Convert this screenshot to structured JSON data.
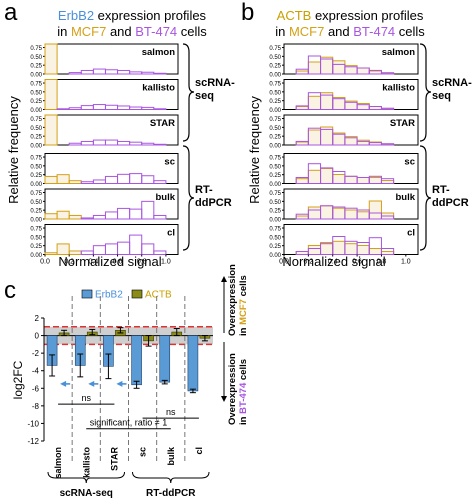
{
  "colors": {
    "erbb2": "#4a90d9",
    "actb": "#c8a000",
    "mcf7": "#d4a017",
    "bt474": "#a855e0",
    "bar_erbb2": "#5b9bd5",
    "bar_actb": "#8b8b1a",
    "red_dash": "#e03030",
    "band": "#cfcfcf"
  },
  "panel_a": {
    "letter": "a",
    "title_gene": "ErbB2",
    "title_rest1": " expression profiles",
    "title_in": "in ",
    "title_mcf7": "MCF7",
    "title_and": " and ",
    "title_bt474": "BT-474",
    "title_cells": " cells"
  },
  "panel_b": {
    "letter": "b",
    "title_gene": "ACTB",
    "title_rest1": " expression profiles",
    "title_in": "in ",
    "title_mcf7": "MCF7",
    "title_and": " and ",
    "title_bt474": "BT-474",
    "title_cells": " cells"
  },
  "panel_c": {
    "letter": "c"
  },
  "axis_text": {
    "ylabel": "Relative frequency",
    "xlabel": "Normalized signal",
    "scrna_1": "scRNA-",
    "scrna_2": "seq",
    "rt_1": "RT-",
    "rt_2": "ddPCR",
    "x_ticks": [
      "0.0",
      "0.2",
      "0.4",
      "0.6",
      "0.8",
      "1.0"
    ],
    "y_ticks": [
      "0.75",
      "0.50",
      "0.25",
      "0.00"
    ]
  },
  "chart_data": [
    {
      "type": "bar",
      "title": "ErbB2 expression profiles in MCF7 and BT-474 cells",
      "xlabel": "Normalized signal",
      "ylabel": "Relative frequency",
      "xlim": [
        0,
        1.1
      ],
      "ylim": [
        0,
        0.85
      ],
      "bin_edges": [
        0.0,
        0.1,
        0.2,
        0.3,
        0.4,
        0.5,
        0.6,
        0.7,
        0.8,
        0.9,
        1.0,
        1.1
      ],
      "panels": [
        {
          "name": "salmon",
          "series": [
            {
              "name": "MCF7",
              "values": [
                0.85,
                0,
                0,
                0,
                0,
                0,
                0,
                0,
                0,
                0,
                0
              ]
            },
            {
              "name": "BT-474",
              "values": [
                0,
                0,
                0.04,
                0.1,
                0.14,
                0.12,
                0.1,
                0.06,
                0.05,
                0.02,
                0.0
              ]
            }
          ]
        },
        {
          "name": "kallisto",
          "series": [
            {
              "name": "MCF7",
              "values": [
                0.85,
                0,
                0,
                0,
                0,
                0,
                0,
                0,
                0,
                0,
                0
              ]
            },
            {
              "name": "BT-474",
              "values": [
                0,
                0.02,
                0.05,
                0.11,
                0.14,
                0.12,
                0.1,
                0.07,
                0.06,
                0.02,
                0.0
              ]
            }
          ]
        },
        {
          "name": "STAR",
          "series": [
            {
              "name": "MCF7",
              "values": [
                0.85,
                0,
                0,
                0,
                0,
                0,
                0,
                0,
                0,
                0,
                0
              ]
            },
            {
              "name": "BT-474",
              "values": [
                0,
                0,
                0.05,
                0.1,
                0.14,
                0.14,
                0.1,
                0.08,
                0.05,
                0.02,
                0.0
              ]
            }
          ]
        },
        {
          "name": "sc",
          "series": [
            {
              "name": "MCF7",
              "values": [
                0.2,
                0.25,
                0.08,
                0,
                0,
                0,
                0,
                0,
                0,
                0,
                0
              ]
            },
            {
              "name": "BT-474",
              "values": [
                0,
                0,
                0,
                0.05,
                0.1,
                0.2,
                0.26,
                0.28,
                0.22,
                0.08,
                0.0
              ]
            }
          ]
        },
        {
          "name": "bulk",
          "series": [
            {
              "name": "MCF7",
              "values": [
                0.15,
                0.22,
                0.1,
                0,
                0,
                0,
                0,
                0,
                0,
                0,
                0
              ]
            },
            {
              "name": "BT-474",
              "values": [
                0,
                0,
                0,
                0.03,
                0.1,
                0.2,
                0.3,
                0.28,
                0.5,
                0.1,
                0.0
              ]
            }
          ]
        },
        {
          "name": "cl",
          "series": [
            {
              "name": "MCF7",
              "values": [
                0.05,
                0.3,
                0.1,
                0,
                0,
                0,
                0,
                0,
                0,
                0,
                0
              ]
            },
            {
              "name": "BT-474",
              "values": [
                0,
                0,
                0,
                0.1,
                0.25,
                0.3,
                0.35,
                0.55,
                0.3,
                0.1,
                0.0
              ]
            }
          ]
        }
      ]
    },
    {
      "type": "bar",
      "title": "ACTB expression profiles in MCF7 and BT-474 cells",
      "xlabel": "Normalized signal",
      "ylabel": "Relative frequency",
      "xlim": [
        0,
        1.1
      ],
      "ylim": [
        0,
        0.5
      ],
      "bin_edges": [
        0.0,
        0.1,
        0.2,
        0.3,
        0.4,
        0.5,
        0.6,
        0.7,
        0.8,
        0.9,
        1.0,
        1.1
      ],
      "panels": [
        {
          "name": "salmon",
          "series": [
            {
              "name": "MCF7",
              "values": [
                0,
                0.05,
                0.2,
                0.28,
                0.22,
                0.14,
                0.1,
                0.05,
                0.02,
                0,
                0
              ]
            },
            {
              "name": "BT-474",
              "values": [
                0,
                0.08,
                0.3,
                0.25,
                0.16,
                0.12,
                0.1,
                0.06,
                0.02,
                0,
                0
              ]
            }
          ]
        },
        {
          "name": "kallisto",
          "series": [
            {
              "name": "MCF7",
              "values": [
                0,
                0.05,
                0.22,
                0.28,
                0.2,
                0.14,
                0.1,
                0.05,
                0.02,
                0,
                0
              ]
            },
            {
              "name": "BT-474",
              "values": [
                0,
                0.06,
                0.28,
                0.24,
                0.18,
                0.12,
                0.08,
                0.05,
                0.02,
                0,
                0
              ]
            }
          ]
        },
        {
          "name": "STAR",
          "series": [
            {
              "name": "MCF7",
              "values": [
                0,
                0.05,
                0.25,
                0.3,
                0.2,
                0.14,
                0.08,
                0.05,
                0.02,
                0,
                0
              ]
            },
            {
              "name": "BT-474",
              "values": [
                0,
                0.06,
                0.28,
                0.26,
                0.18,
                0.12,
                0.06,
                0.04,
                0.02,
                0,
                0
              ]
            }
          ]
        },
        {
          "name": "sc",
          "series": [
            {
              "name": "MCF7",
              "values": [
                0,
                0.08,
                0.22,
                0.25,
                0.15,
                0.12,
                0.1,
                0.1,
                0.05,
                0,
                0
              ]
            },
            {
              "name": "BT-474",
              "values": [
                0,
                0.1,
                0.33,
                0.26,
                0.2,
                0.12,
                0.1,
                0.12,
                0.08,
                0,
                0
              ]
            }
          ]
        },
        {
          "name": "bulk",
          "series": [
            {
              "name": "MCF7",
              "values": [
                0,
                0.05,
                0.2,
                0.22,
                0.18,
                0.15,
                0.12,
                0.3,
                0.1,
                0,
                0
              ]
            },
            {
              "name": "BT-474",
              "values": [
                0,
                0.08,
                0.15,
                0.22,
                0.2,
                0.18,
                0.15,
                0.1,
                0.05,
                0,
                0
              ]
            }
          ]
        },
        {
          "name": "cl",
          "series": [
            {
              "name": "MCF7",
              "values": [
                0,
                0.05,
                0.15,
                0.2,
                0.22,
                0.18,
                0.15,
                0.1,
                0.05,
                0,
                0
              ]
            },
            {
              "name": "BT-474",
              "values": [
                0,
                0.05,
                0.1,
                0.18,
                0.3,
                0.22,
                0.2,
                0.28,
                0.1,
                0,
                0
              ]
            }
          ]
        }
      ]
    },
    {
      "type": "bar",
      "title": "",
      "xlabel": "",
      "ylabel": "log2FC",
      "ylim": [
        -12,
        2
      ],
      "categories": [
        "salmon",
        "kallisto",
        "STAR",
        "sc",
        "bulk",
        "cl"
      ],
      "y_ticks": [
        2,
        0,
        -2,
        -4,
        -6,
        -8,
        -10,
        -12
      ],
      "series": [
        {
          "name": "ErbB2",
          "values": [
            -3.4,
            -3.4,
            -3.5,
            -5.6,
            -5.3,
            -6.3
          ],
          "errors": [
            1.2,
            1.3,
            1.4,
            0.4,
            0.2,
            0.2
          ]
        },
        {
          "name": "ACTB",
          "values": [
            0.3,
            0.4,
            0.6,
            -0.6,
            0.4,
            -0.3
          ],
          "errors": [
            0.3,
            0.3,
            0.3,
            0.6,
            0.4,
            0.3
          ]
        }
      ],
      "group_labels": [
        "scRNA-seq",
        "RT-ddPCR"
      ],
      "annotations": [
        "ns",
        "ns",
        "significant, ratio ≠ 1"
      ],
      "side_top": [
        "Overexpression",
        "in ",
        "MCF7",
        " cells"
      ],
      "side_bottom": [
        "Overexpression",
        "in ",
        "BT-474",
        " cells"
      ]
    }
  ]
}
